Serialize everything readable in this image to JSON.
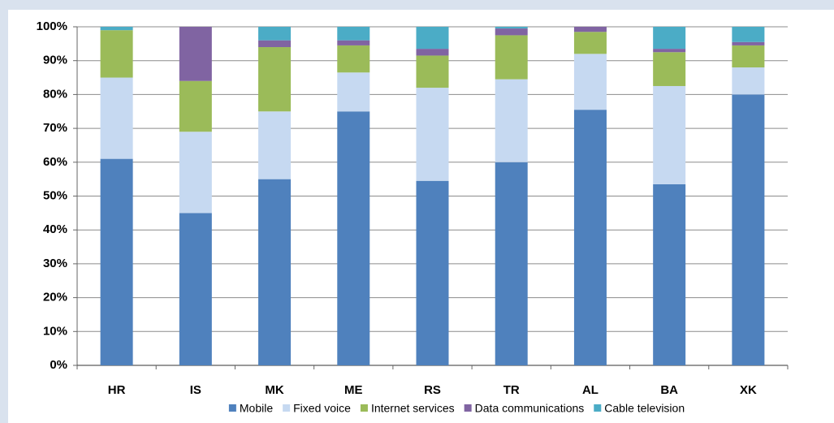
{
  "chart_data": {
    "type": "stacked_bar",
    "categories": [
      "HR",
      "IS",
      "MK",
      "ME",
      "RS",
      "TR",
      "AL",
      "BA",
      "XK"
    ],
    "series": [
      {
        "name": "Mobile",
        "color": "#4f81bd",
        "values": [
          61,
          45,
          55,
          75,
          54.5,
          60,
          75.5,
          53.5,
          80
        ]
      },
      {
        "name": "Fixed voice",
        "color": "#c6d9f1",
        "values": [
          24,
          24,
          20,
          11.5,
          27.5,
          24.5,
          16.5,
          29,
          8
        ]
      },
      {
        "name": "Internet services",
        "color": "#9bbb59",
        "values": [
          14,
          15,
          19,
          8,
          9.5,
          13,
          6.5,
          10,
          6.5
        ]
      },
      {
        "name": "Data communications",
        "color": "#8064a2",
        "values": [
          0,
          16,
          2,
          1.5,
          2,
          2,
          1.5,
          1,
          1
        ]
      },
      {
        "name": "Cable television",
        "color": "#4bacc6",
        "values": [
          1,
          0,
          4,
          4,
          6.5,
          0.5,
          0,
          6.5,
          4.5
        ]
      }
    ],
    "ylim": [
      0,
      100
    ],
    "yticks": [
      {
        "value": 0,
        "label": "0%"
      },
      {
        "value": 10,
        "label": "10%"
      },
      {
        "value": 20,
        "label": "20%"
      },
      {
        "value": 30,
        "label": "30%"
      },
      {
        "value": 40,
        "label": "40%"
      },
      {
        "value": 50,
        "label": "50%"
      },
      {
        "value": 60,
        "label": "60%"
      },
      {
        "value": 70,
        "label": "70%"
      },
      {
        "value": 80,
        "label": "80%"
      },
      {
        "value": 90,
        "label": "90%"
      },
      {
        "value": 100,
        "label": "100%"
      }
    ],
    "grid": true,
    "legend": "bottom"
  }
}
